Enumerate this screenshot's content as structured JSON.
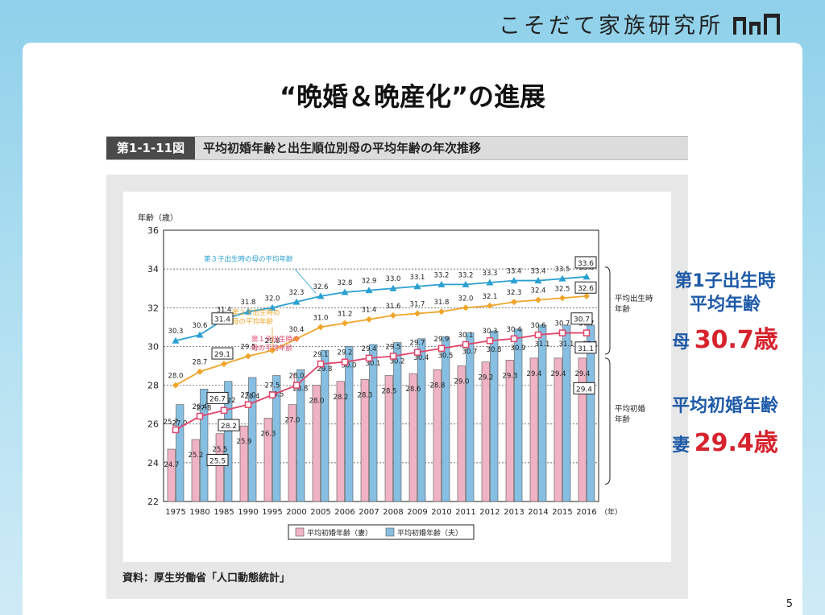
{
  "brand": {
    "name": "こそだて家族研究所"
  },
  "slide": {
    "title": "“晩婚＆晩産化”の進展",
    "page_number": "5"
  },
  "figure": {
    "label": "第1-1-11図",
    "title": "平均初婚年齢と出生順位別母の平均年齢の年次推移",
    "source": "資料：厚生労働省「人口動態統計」"
  },
  "callouts": {
    "mother_heading_1": "第1子出生時",
    "mother_heading_2": "平均年齢",
    "mother_prefix": "母",
    "mother_value": "30.7歳",
    "wife_heading": "平均初婚年齢",
    "wife_prefix": "妻",
    "wife_value": "29.4歳"
  },
  "colors": {
    "bar_wife": "#f0b3c3",
    "bar_husband": "#86bfe2",
    "line_first_child": "#e2456a",
    "line_second_child": "#f0a52b",
    "line_third_child": "#2aa0d2",
    "callout_blue": "#1e5aa8",
    "callout_red": "#d6232d"
  },
  "chart_data": {
    "type": "bar",
    "ylabel": "年齢（歳）",
    "year_unit": "（年）",
    "ylim": [
      22,
      36
    ],
    "yticks": [
      22,
      24,
      26,
      28,
      30,
      32,
      34,
      36
    ],
    "categories": [
      "1975",
      "1980",
      "1985",
      "1990",
      "1995",
      "2000",
      "2005",
      "2006",
      "2007",
      "2008",
      "2009",
      "2010",
      "2011",
      "2012",
      "2013",
      "2014",
      "2015",
      "2016"
    ],
    "bar_series": [
      {
        "name": "平均初婚年齢（妻）",
        "values": [
          24.7,
          25.2,
          25.5,
          25.9,
          26.3,
          27.0,
          28.0,
          28.2,
          28.3,
          28.5,
          28.6,
          28.8,
          29.0,
          29.2,
          29.3,
          29.4,
          29.4,
          29.4
        ]
      },
      {
        "name": "平均初婚年齢（夫）",
        "values": [
          27.0,
          27.8,
          28.2,
          28.4,
          28.5,
          28.8,
          29.8,
          30.0,
          30.1,
          30.2,
          30.4,
          30.5,
          30.7,
          30.8,
          30.9,
          31.1,
          31.1,
          31.1
        ]
      }
    ],
    "line_series": [
      {
        "name": "第１子出生時の母の平均年齢",
        "values": [
          25.7,
          26.4,
          26.7,
          27.0,
          27.5,
          28.0,
          29.1,
          29.2,
          29.4,
          29.5,
          29.7,
          29.9,
          30.1,
          30.3,
          30.4,
          30.6,
          30.7,
          30.7
        ]
      },
      {
        "name": "第２子出生時の母の平均年齢",
        "values": [
          28.0,
          28.7,
          29.1,
          29.5,
          29.8,
          30.4,
          31.0,
          31.2,
          31.4,
          31.6,
          31.7,
          31.8,
          32.0,
          32.1,
          32.3,
          32.4,
          32.5,
          32.6
        ]
      },
      {
        "name": "第３子出生時の母の平均年齢",
        "values": [
          30.3,
          30.6,
          31.4,
          31.8,
          32.0,
          32.3,
          32.6,
          32.8,
          32.9,
          33.0,
          33.1,
          33.2,
          33.2,
          33.3,
          33.4,
          33.4,
          33.5,
          33.6
        ]
      }
    ],
    "boxed_values": [
      {
        "value": "31.4"
      },
      {
        "value": "29.1"
      },
      {
        "value": "26.7"
      },
      {
        "value": "28.2"
      },
      {
        "value": "25.5"
      },
      {
        "value": "33.6"
      },
      {
        "value": "32.6"
      },
      {
        "value": "30.7"
      },
      {
        "value": "31.1"
      },
      {
        "value": "29.4"
      }
    ],
    "brackets": [
      {
        "label_1": "平均出生時",
        "label_2": "年齢"
      },
      {
        "label_1": "平均初婚",
        "label_2": "年齢"
      }
    ],
    "legend": {
      "placement": "bottom-center",
      "entries": [
        "平均初婚年齢（妻）",
        "平均初婚年齢（夫）"
      ]
    },
    "grid": "dotted-horizontal"
  }
}
